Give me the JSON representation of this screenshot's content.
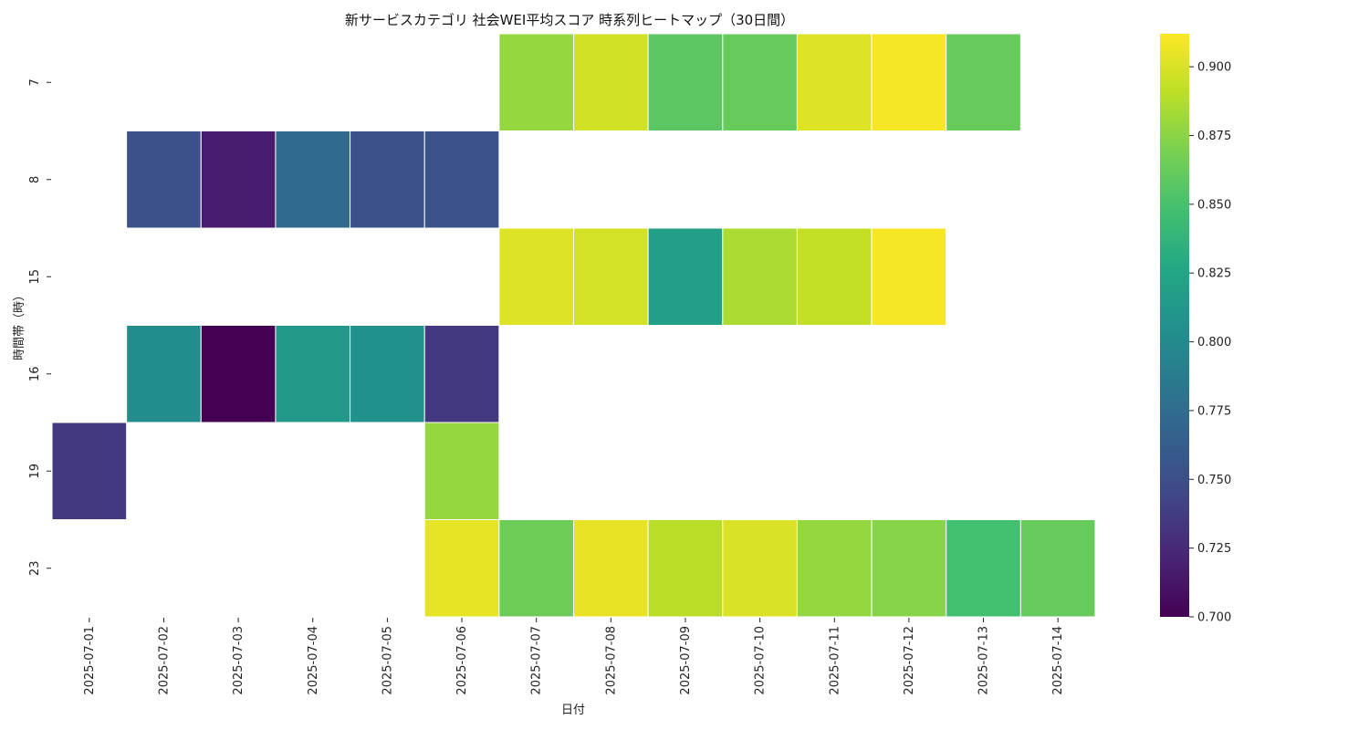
{
  "chart_data": {
    "type": "heatmap",
    "title": "新サービスカテゴリ 社会WEI平均スコア 時系列ヒートマップ（30日間）",
    "xlabel": "日付",
    "ylabel": "時間帯（時）",
    "x_categories": [
      "2025-07-01",
      "2025-07-02",
      "2025-07-03",
      "2025-07-04",
      "2025-07-05",
      "2025-07-06",
      "2025-07-07",
      "2025-07-08",
      "2025-07-09",
      "2025-07-10",
      "2025-07-11",
      "2025-07-12",
      "2025-07-13",
      "2025-07-14"
    ],
    "y_categories": [
      "7",
      "8",
      "15",
      "16",
      "19",
      "23"
    ],
    "values": [
      [
        null,
        null,
        null,
        null,
        null,
        null,
        0.878,
        0.897,
        0.858,
        0.862,
        0.902,
        0.91,
        0.862,
        null
      ],
      [
        null,
        0.752,
        0.716,
        0.773,
        0.752,
        0.755,
        null,
        null,
        null,
        null,
        null,
        null,
        null,
        null
      ],
      [
        null,
        null,
        null,
        null,
        null,
        null,
        0.902,
        0.898,
        0.82,
        0.885,
        0.893,
        0.91,
        null,
        null
      ],
      [
        null,
        0.802,
        0.7,
        0.812,
        0.806,
        0.735,
        null,
        null,
        null,
        null,
        null,
        null,
        null,
        null
      ],
      [
        0.735,
        null,
        null,
        null,
        null,
        0.878,
        null,
        null,
        null,
        null,
        null,
        null,
        null,
        null
      ],
      [
        null,
        null,
        null,
        null,
        null,
        0.904,
        0.865,
        0.905,
        0.89,
        0.9,
        0.878,
        0.874,
        0.848,
        0.862
      ]
    ],
    "colorscale": "viridis",
    "zlim": [
      0.7,
      0.912
    ],
    "colorbar_ticks": [
      "0.700",
      "0.725",
      "0.750",
      "0.775",
      "0.800",
      "0.825",
      "0.850",
      "0.875",
      "0.900"
    ],
    "grid": false
  }
}
